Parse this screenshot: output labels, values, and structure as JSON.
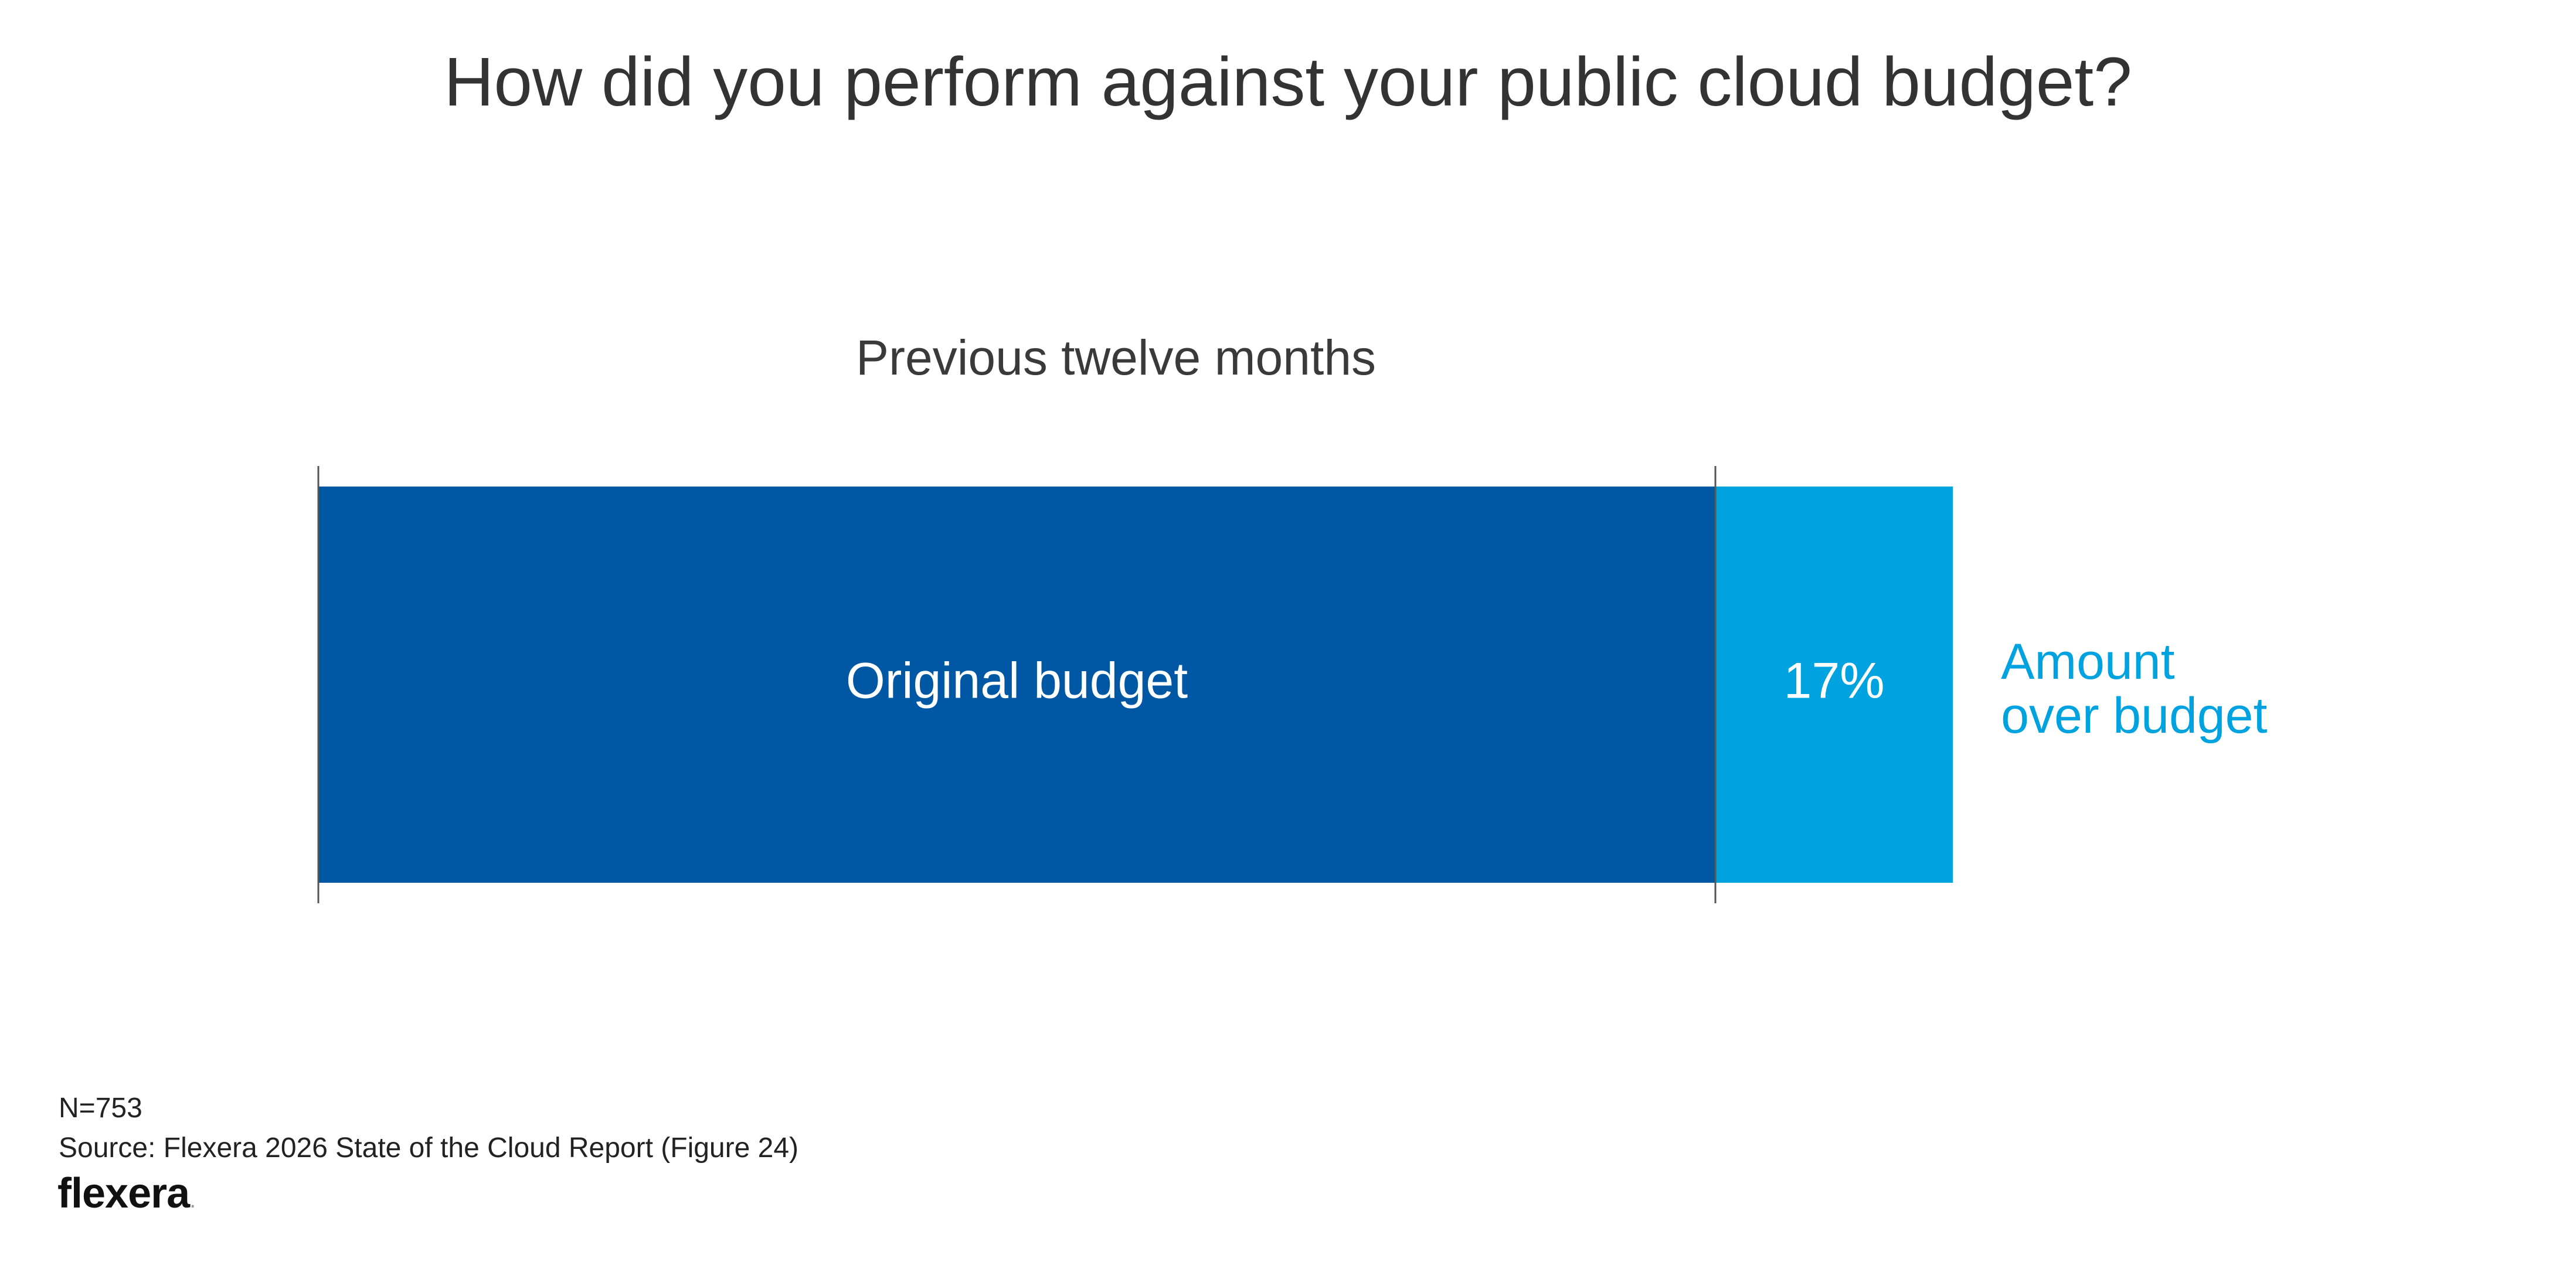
{
  "chart_data": {
    "type": "bar",
    "title": "How did you perform against your public cloud budget?",
    "subtitle": "Previous twelve months",
    "orientation": "horizontal-stacked",
    "segments": [
      {
        "name": "Original budget",
        "value": 100,
        "label": "Original budget",
        "color": "#0057A4"
      },
      {
        "name": "Amount over budget",
        "value": 17,
        "label": "17%",
        "color": "#00A3E0"
      }
    ],
    "outside_label": {
      "line1": "Amount",
      "line2": "over budget",
      "color": "#00A3E0"
    },
    "legend": "none",
    "grid": false
  },
  "footer": {
    "n": "N=753",
    "source": "Source: Flexera 2026 State of the Cloud Report (Figure 24)",
    "logo": "flexera",
    "logo_dot": "."
  }
}
